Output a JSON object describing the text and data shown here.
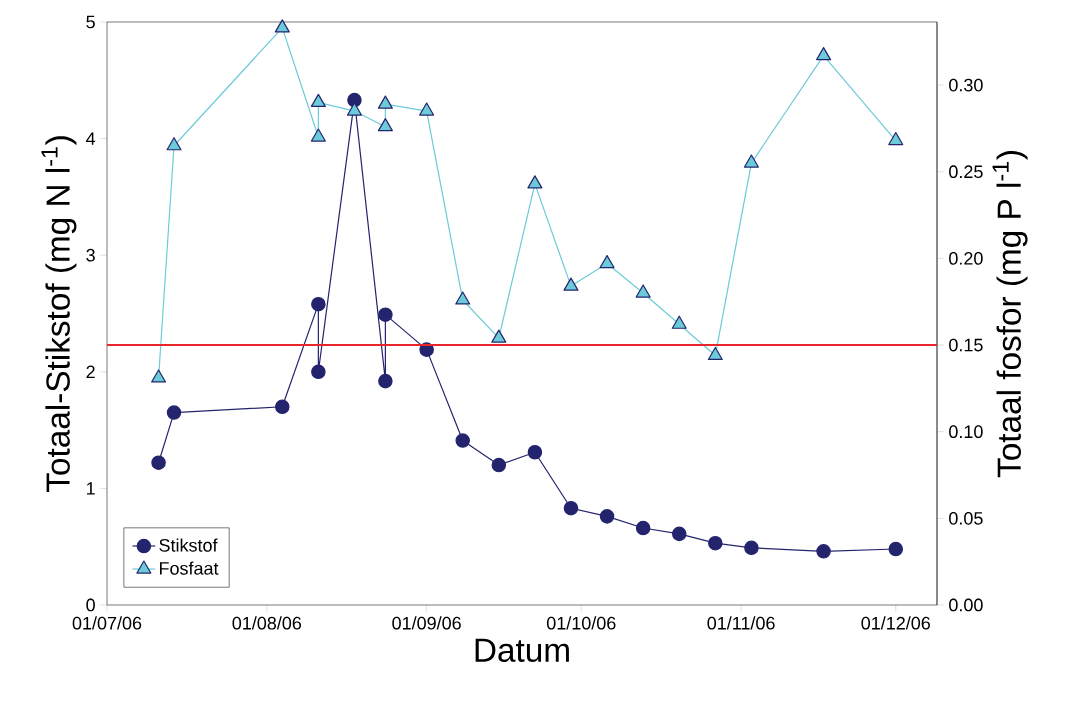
{
  "chart_data": {
    "type": "line",
    "xlabel": "Datum",
    "ylabel": "Totaal-Stikstof (mg N l$^{-1}$)",
    "y2label": "Totaal fosfor (mg P l$^{-1}$)",
    "xlim": [
      "2006-07-01",
      "2006-12-09"
    ],
    "xticks": [
      {
        "value": "2006-07-01",
        "label": "01/07/06"
      },
      {
        "value": "2006-08-01",
        "label": "01/08/06"
      },
      {
        "value": "2006-09-01",
        "label": "01/09/06"
      },
      {
        "value": "2006-10-01",
        "label": "01/10/06"
      },
      {
        "value": "2006-11-01",
        "label": "01/11/06"
      },
      {
        "value": "2006-12-01",
        "label": "01/12/06"
      }
    ],
    "ylim": [
      0,
      5
    ],
    "yticks": [
      0,
      1,
      2,
      3,
      4,
      5
    ],
    "y2lim": [
      0,
      0.3364
    ],
    "y2ticks": [
      {
        "value": 0,
        "label": "0.00"
      },
      {
        "value": 0.05,
        "label": "0.05"
      },
      {
        "value": 0.1,
        "label": "0.10"
      },
      {
        "value": 0.15,
        "label": "0.15"
      },
      {
        "value": 0.2,
        "label": "0.20"
      },
      {
        "value": 0.25,
        "label": "0.25"
      },
      {
        "value": 0.3,
        "label": "0.30"
      }
    ],
    "legend": "bottom left",
    "grid": false,
    "line_style": "solid",
    "series": [
      {
        "name": "Stikstof",
        "color": "#24246e",
        "marker": "circle",
        "x": [
          "2006-07-11",
          "2006-07-14",
          "2006-08-04",
          "2006-08-11",
          "2006-08-11",
          "2006-08-18",
          "2006-08-24",
          "2006-08-24",
          "2006-09-01",
          "2006-09-08",
          "2006-09-15",
          "2006-09-22",
          "2006-09-29",
          "2006-10-06",
          "2006-10-13",
          "2006-10-20",
          "2006-10-27",
          "2006-11-03",
          "2006-11-17",
          "2006-12-01"
        ],
        "values": [
          1.22,
          1.65,
          1.7,
          2.58,
          2.0,
          4.33,
          1.92,
          2.49,
          2.19,
          1.41,
          1.2,
          1.31,
          0.83,
          0.76,
          0.66,
          0.61,
          0.53,
          0.49,
          0.46,
          0.48
        ]
      },
      {
        "name": "Fosfaat",
        "color": "#6ccbd8",
        "marker": "triangle",
        "axis": "y2",
        "x": [
          "2006-07-11",
          "2006-07-14",
          "2006-08-04",
          "2006-08-11",
          "2006-08-11",
          "2006-08-18",
          "2006-08-24",
          "2006-08-24",
          "2006-09-01",
          "2006-09-08",
          "2006-09-15",
          "2006-09-22",
          "2006-09-29",
          "2006-10-06",
          "2006-10-13",
          "2006-10-20",
          "2006-10-27",
          "2006-11-03",
          "2006-11-17",
          "2006-12-01"
        ],
        "values": [
          0.131,
          0.265,
          0.333,
          0.27,
          0.29,
          0.285,
          0.276,
          0.289,
          0.285,
          0.176,
          0.154,
          0.243,
          0.184,
          0.197,
          0.18,
          0.162,
          0.144,
          0.255,
          0.317,
          0.268
        ]
      }
    ],
    "ref_lines": [
      {
        "axis": "y2",
        "value": 0.15,
        "color": "#e8262b",
        "line_style": "solid"
      }
    ]
  }
}
